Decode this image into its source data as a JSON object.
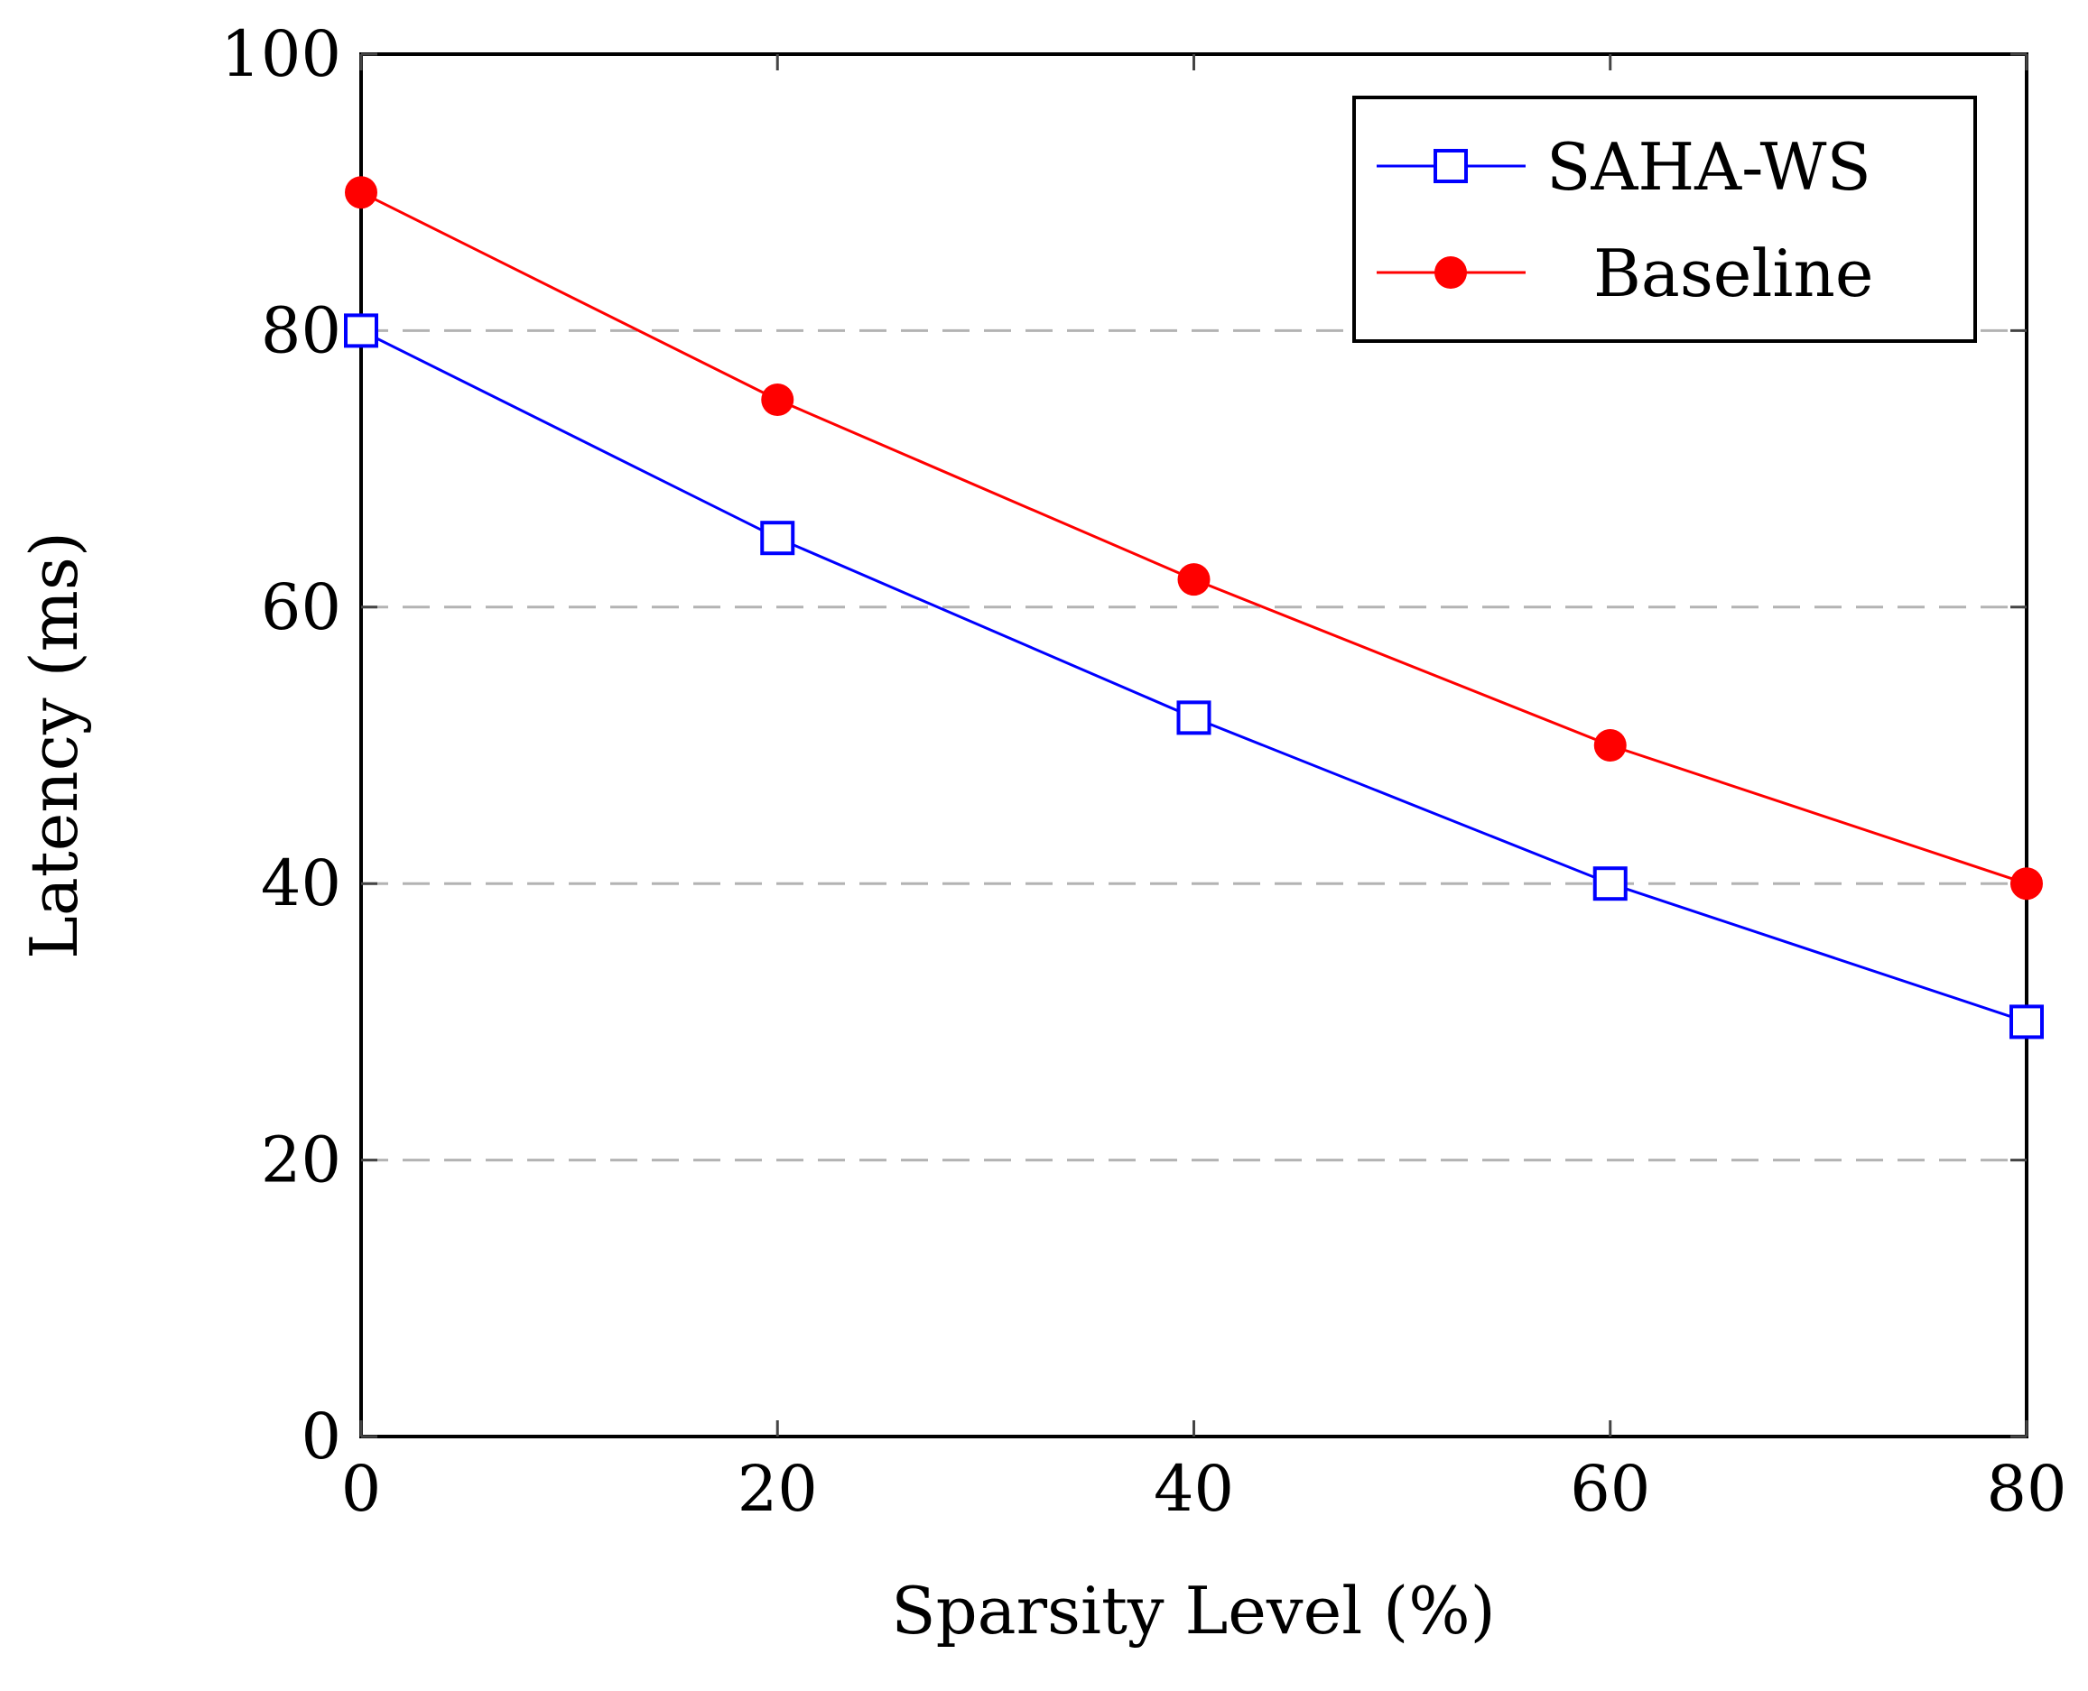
{
  "chart_data": {
    "type": "line",
    "title": "",
    "xlabel": "Sparsity Level (%)",
    "ylabel": "Latency (ms)",
    "x": [
      0,
      20,
      40,
      60,
      80
    ],
    "xlim": [
      0,
      80
    ],
    "ylim": [
      0,
      100
    ],
    "xticks": [
      "0",
      "20",
      "40",
      "60",
      "80"
    ],
    "yticks": [
      "0",
      "20",
      "40",
      "60",
      "80",
      "100"
    ],
    "grid": "horizontal dashed",
    "legend_position": "top-right",
    "series": [
      {
        "name": "SAHA-WS",
        "values": [
          80,
          65,
          52,
          40,
          30
        ],
        "color": "#0000ff",
        "marker": "open-square"
      },
      {
        "name": "Baseline",
        "values": [
          90,
          75,
          62,
          50,
          40
        ],
        "color": "#ff0000",
        "marker": "filled-circle"
      }
    ]
  }
}
